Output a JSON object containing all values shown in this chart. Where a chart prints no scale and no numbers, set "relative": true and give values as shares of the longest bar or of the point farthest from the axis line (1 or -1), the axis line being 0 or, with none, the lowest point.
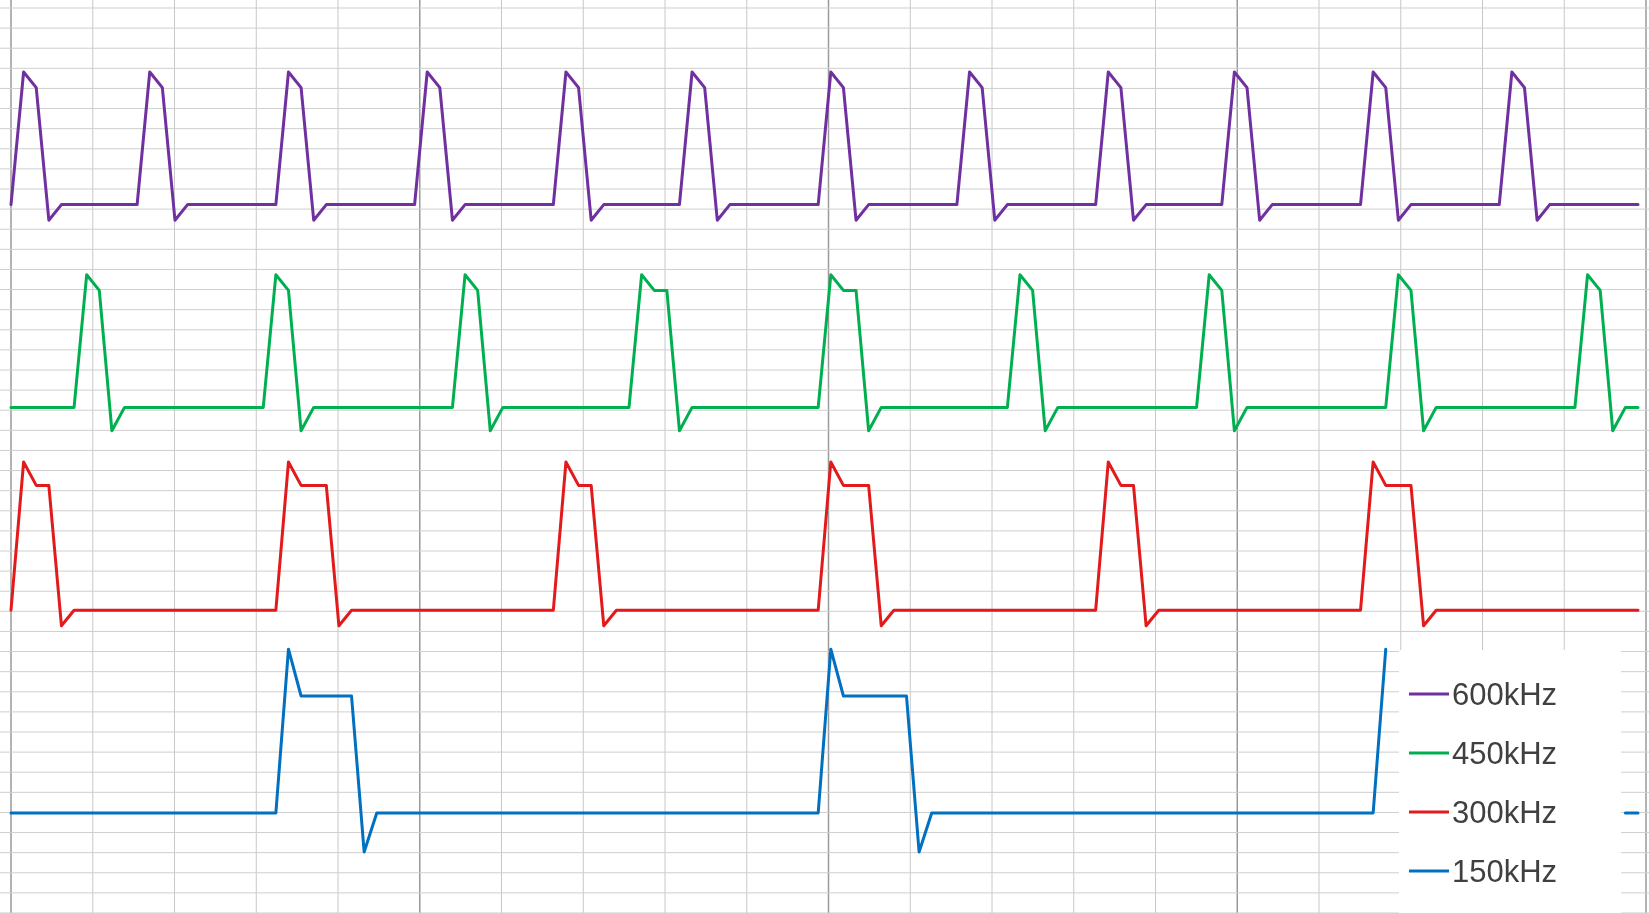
{
  "chart_data": {
    "type": "line",
    "relative": true,
    "grid": true,
    "legend": "bottom right",
    "categories": [
      null,
      null,
      null,
      null,
      null,
      null,
      null,
      null,
      null,
      null,
      null,
      null,
      null,
      null,
      null,
      null,
      null,
      null,
      null,
      null,
      null,
      null,
      null,
      null,
      null,
      null,
      null,
      null,
      null,
      null,
      null,
      null,
      null,
      null,
      null,
      null,
      null,
      null,
      null,
      null,
      null,
      null,
      null,
      null,
      null,
      null,
      null,
      null,
      null,
      null,
      null,
      null,
      null,
      null,
      null,
      null,
      null,
      null,
      null,
      null,
      null,
      null,
      null,
      null,
      null,
      null,
      null,
      null,
      null,
      null,
      null,
      null,
      null,
      null,
      null,
      null,
      null,
      null,
      null,
      null,
      null,
      null,
      null,
      null,
      null,
      null,
      null,
      null,
      null,
      null,
      null,
      null,
      null,
      null,
      null,
      null,
      null,
      null,
      null,
      null,
      null,
      null,
      null,
      null,
      null,
      null,
      null,
      null,
      null,
      null,
      null,
      null,
      null,
      null,
      null,
      null,
      null,
      null,
      null,
      null,
      null,
      null,
      null,
      null,
      null,
      null,
      null,
      null,
      null,
      null
    ],
    "series": [
      {
        "name": "600kHz",
        "color": "#7030a0",
        "values": [
          0.83,
          1,
          0.98,
          0.81,
          0.83,
          0.83,
          0.83,
          0.83,
          0.83,
          0.83,
          0.83,
          1,
          0.98,
          0.81,
          0.83,
          0.83,
          0.83,
          0.83,
          0.83,
          0.83,
          0.83,
          0.83,
          1,
          0.98,
          0.81,
          0.83,
          0.83,
          0.83,
          0.83,
          0.83,
          0.83,
          0.83,
          0.83,
          1,
          0.98,
          0.81,
          0.83,
          0.83,
          0.83,
          0.83,
          0.83,
          0.83,
          0.83,
          0.83,
          1,
          0.98,
          0.81,
          0.83,
          0.83,
          0.83,
          0.83,
          0.83,
          0.83,
          0.83,
          1,
          0.98,
          0.81,
          0.83,
          0.83,
          0.83,
          0.83,
          0.83,
          0.83,
          0.83,
          0.83,
          1,
          0.98,
          0.81,
          0.83,
          0.83,
          0.83,
          0.83,
          0.83,
          0.83,
          0.83,
          0.83,
          1,
          0.98,
          0.81,
          0.83,
          0.83,
          0.83,
          0.83,
          0.83,
          0.83,
          0.83,
          0.83,
          1,
          0.98,
          0.81,
          0.83,
          0.83,
          0.83,
          0.83,
          0.83,
          0.83,
          0.83,
          1,
          0.98,
          0.81,
          0.83,
          0.83,
          0.83,
          0.83,
          0.83,
          0.83,
          0.83,
          0.83,
          1,
          0.98,
          0.81,
          0.83,
          0.83,
          0.83,
          0.83,
          0.83,
          0.83,
          0.83,
          0.83,
          1,
          0.98,
          0.81,
          0.83,
          0.83,
          0.83,
          0.83,
          0.83,
          0.83,
          0.83,
          0.83
        ]
      },
      {
        "name": "450kHz",
        "color": "#00b050",
        "values": [
          0.57,
          0.57,
          0.57,
          0.57,
          0.57,
          0.57,
          0.74,
          0.72,
          0.54,
          0.57,
          0.57,
          0.57,
          0.57,
          0.57,
          0.57,
          0.57,
          0.57,
          0.57,
          0.57,
          0.57,
          0.57,
          0.74,
          0.72,
          0.54,
          0.57,
          0.57,
          0.57,
          0.57,
          0.57,
          0.57,
          0.57,
          0.57,
          0.57,
          0.57,
          0.57,
          0.57,
          0.74,
          0.72,
          0.54,
          0.57,
          0.57,
          0.57,
          0.57,
          0.57,
          0.57,
          0.57,
          0.57,
          0.57,
          0.57,
          0.57,
          0.74,
          0.72,
          0.72,
          0.54,
          0.57,
          0.57,
          0.57,
          0.57,
          0.57,
          0.57,
          0.57,
          0.57,
          0.57,
          0.57,
          0.57,
          0.74,
          0.72,
          0.72,
          0.54,
          0.57,
          0.57,
          0.57,
          0.57,
          0.57,
          0.57,
          0.57,
          0.57,
          0.57,
          0.57,
          0.57,
          0.74,
          0.72,
          0.54,
          0.57,
          0.57,
          0.57,
          0.57,
          0.57,
          0.57,
          0.57,
          0.57,
          0.57,
          0.57,
          0.57,
          0.57,
          0.74,
          0.72,
          0.54,
          0.57,
          0.57,
          0.57,
          0.57,
          0.57,
          0.57,
          0.57,
          0.57,
          0.57,
          0.57,
          0.57,
          0.57,
          0.74,
          0.72,
          0.54,
          0.57,
          0.57,
          0.57,
          0.57,
          0.57,
          0.57,
          0.57,
          0.57,
          0.57,
          0.57,
          0.57,
          0.57,
          0.74,
          0.72,
          0.54,
          0.57,
          0.57
        ]
      },
      {
        "name": "300kHz",
        "color": "#e31a1c",
        "values": [
          0.31,
          0.5,
          0.47,
          0.47,
          0.29,
          0.31,
          0.31,
          0.31,
          0.31,
          0.31,
          0.31,
          0.31,
          0.31,
          0.31,
          0.31,
          0.31,
          0.31,
          0.31,
          0.31,
          0.31,
          0.31,
          0.31,
          0.5,
          0.47,
          0.47,
          0.47,
          0.29,
          0.31,
          0.31,
          0.31,
          0.31,
          0.31,
          0.31,
          0.31,
          0.31,
          0.31,
          0.31,
          0.31,
          0.31,
          0.31,
          0.31,
          0.31,
          0.31,
          0.31,
          0.5,
          0.47,
          0.47,
          0.29,
          0.31,
          0.31,
          0.31,
          0.31,
          0.31,
          0.31,
          0.31,
          0.31,
          0.31,
          0.31,
          0.31,
          0.31,
          0.31,
          0.31,
          0.31,
          0.31,
          0.31,
          0.5,
          0.47,
          0.47,
          0.47,
          0.29,
          0.31,
          0.31,
          0.31,
          0.31,
          0.31,
          0.31,
          0.31,
          0.31,
          0.31,
          0.31,
          0.31,
          0.31,
          0.31,
          0.31,
          0.31,
          0.31,
          0.31,
          0.5,
          0.47,
          0.47,
          0.29,
          0.31,
          0.31,
          0.31,
          0.31,
          0.31,
          0.31,
          0.31,
          0.31,
          0.31,
          0.31,
          0.31,
          0.31,
          0.31,
          0.31,
          0.31,
          0.31,
          0.31,
          0.5,
          0.47,
          0.47,
          0.47,
          0.29,
          0.31,
          0.31,
          0.31,
          0.31,
          0.31,
          0.31,
          0.31,
          0.31,
          0.31,
          0.31,
          0.31,
          0.31,
          0.31,
          0.31,
          0.31,
          0.31,
          0.31
        ]
      },
      {
        "name": "150kHz",
        "color": "#0070c0",
        "values": [
          0.05,
          0.05,
          0.05,
          0.05,
          0.05,
          0.05,
          0.05,
          0.05,
          0.05,
          0.05,
          0.05,
          0.05,
          0.05,
          0.05,
          0.05,
          0.05,
          0.05,
          0.05,
          0.05,
          0.05,
          0.05,
          0.05,
          0.26,
          0.2,
          0.2,
          0.2,
          0.2,
          0.2,
          0,
          0.05,
          0.05,
          0.05,
          0.05,
          0.05,
          0.05,
          0.05,
          0.05,
          0.05,
          0.05,
          0.05,
          0.05,
          0.05,
          0.05,
          0.05,
          0.05,
          0.05,
          0.05,
          0.05,
          0.05,
          0.05,
          0.05,
          0.05,
          0.05,
          0.05,
          0.05,
          0.05,
          0.05,
          0.05,
          0.05,
          0.05,
          0.05,
          0.05,
          0.05,
          0.05,
          0.05,
          0.26,
          0.2,
          0.2,
          0.2,
          0.2,
          0.2,
          0.2,
          0,
          0.05,
          0.05,
          0.05,
          0.05,
          0.05,
          0.05,
          0.05,
          0.05,
          0.05,
          0.05,
          0.05,
          0.05,
          0.05,
          0.05,
          0.05,
          0.05,
          0.05,
          0.05,
          0.05,
          0.05,
          0.05,
          0.05,
          0.05,
          0.05,
          0.05,
          0.05,
          0.05,
          0.05,
          0.05,
          0.05,
          0.05,
          0.05,
          0.05,
          0.05,
          0.05,
          0.05,
          0.26,
          null,
          null,
          null,
          null,
          null,
          null,
          null,
          null,
          null,
          null,
          null,
          null,
          null,
          null,
          null,
          null,
          null,
          null,
          0.05,
          0.05
        ]
      }
    ]
  }
}
